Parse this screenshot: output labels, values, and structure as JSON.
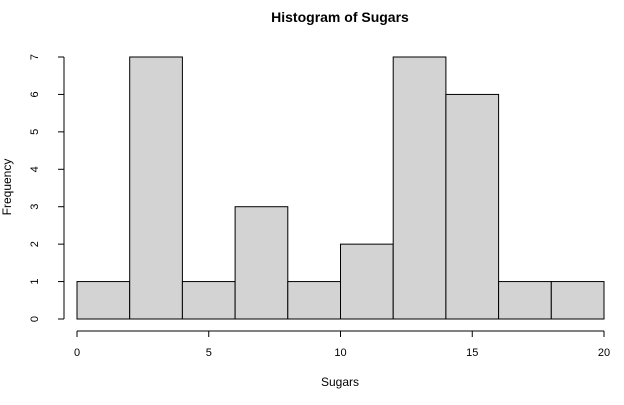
{
  "chart_data": {
    "type": "bar",
    "title": "Histogram of Sugars",
    "xlabel": "Sugars",
    "ylabel": "Frequency",
    "bins": [
      {
        "start": 0,
        "end": 2,
        "count": 1
      },
      {
        "start": 2,
        "end": 4,
        "count": 7
      },
      {
        "start": 4,
        "end": 6,
        "count": 1
      },
      {
        "start": 6,
        "end": 8,
        "count": 3
      },
      {
        "start": 8,
        "end": 10,
        "count": 1
      },
      {
        "start": 10,
        "end": 12,
        "count": 2
      },
      {
        "start": 12,
        "end": 14,
        "count": 7
      },
      {
        "start": 14,
        "end": 16,
        "count": 6
      },
      {
        "start": 16,
        "end": 18,
        "count": 1
      },
      {
        "start": 18,
        "end": 20,
        "count": 1
      }
    ],
    "xlim": [
      0,
      20
    ],
    "ylim": [
      0,
      7
    ],
    "x_ticks": [
      "0",
      "5",
      "10",
      "15",
      "20"
    ],
    "y_ticks": [
      "0",
      "1",
      "2",
      "3",
      "4",
      "5",
      "6",
      "7"
    ],
    "bar_color": "#d3d3d3",
    "grid": false,
    "legend": false
  }
}
